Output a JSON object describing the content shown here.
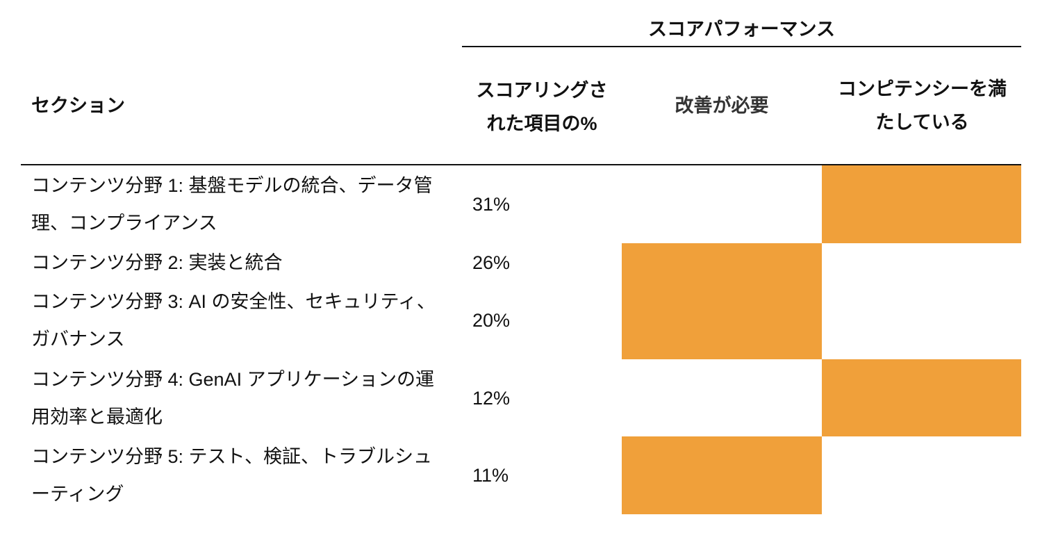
{
  "header": {
    "group_title": "スコアパフォーマンス",
    "col_section": "セクション",
    "col_percent": "スコアリングされた項目の%",
    "col_needs_improvement": "改善が必要",
    "col_meets": "コンピテンシーを満たしている"
  },
  "colors": {
    "fill": "#F0A03A"
  },
  "rows": [
    {
      "section": "コンテンツ分野 1: 基盤モデルの統合、データ管理、コンプライアンス",
      "percent": "31%",
      "performance": "meets"
    },
    {
      "section": "コンテンツ分野 2: 実装と統合",
      "percent": "26%",
      "performance": "needs_improvement"
    },
    {
      "section": "コンテンツ分野 3: AI の安全性、セキュリティ、ガバナンス",
      "percent": "20%",
      "performance": "needs_improvement"
    },
    {
      "section": "コンテンツ分野 4: GenAI アプリケーションの運用効率と最適化",
      "percent": "12%",
      "performance": "meets"
    },
    {
      "section": "コンテンツ分野 5: テスト、検証、トラブルシューティング",
      "percent": "11%",
      "performance": "needs_improvement"
    }
  ]
}
